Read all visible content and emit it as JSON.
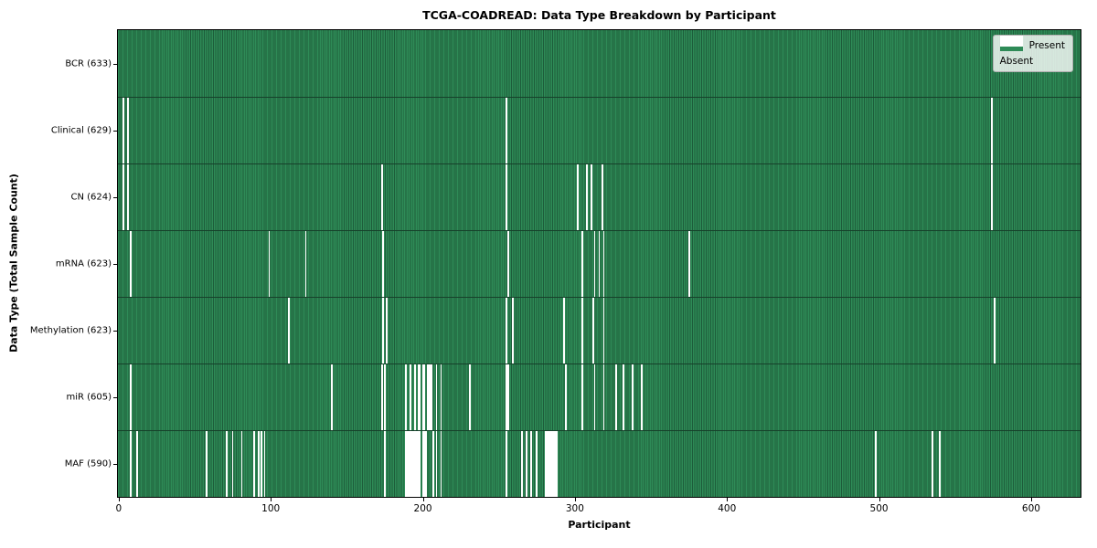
{
  "title": "TCGA-COADREAD: Data Type Breakdown by Participant",
  "xlabel": "Participant",
  "ylabel": "Data Type (Total Sample Count)",
  "colors": {
    "present": "#2e8b57",
    "present_edge": "#1d5c3a",
    "absent": "#ffffff",
    "legend_border": "#b0b0b0"
  },
  "legend": {
    "present_label": "Present",
    "absent_label": "Absent"
  },
  "chart_data": {
    "type": "heatmap",
    "title": "TCGA-COADREAD: Data Type Breakdown by Participant",
    "xlabel": "Participant",
    "ylabel": "Data Type (Total Sample Count)",
    "legend": [
      "Present",
      "Absent"
    ],
    "legend_position": "upper right",
    "n_participants": 633,
    "x_range": [
      0,
      633
    ],
    "x_ticks": [
      0,
      100,
      200,
      300,
      400,
      500,
      600
    ],
    "rows": [
      {
        "name": "BCR",
        "label": "BCR (633)",
        "present_count": 633,
        "absent_count": 0,
        "absent_participants": []
      },
      {
        "name": "Clinical",
        "label": "Clinical (629)",
        "present_count": 629,
        "absent_count": 4,
        "absent_participants": [
          3,
          6,
          255,
          574
        ]
      },
      {
        "name": "CN",
        "label": "CN (624)",
        "present_count": 624,
        "absent_count": 9,
        "absent_participants": [
          3,
          6,
          173,
          255,
          302,
          308,
          311,
          318,
          574
        ]
      },
      {
        "name": "mRNA",
        "label": "mRNA (623)",
        "present_count": 623,
        "absent_count": 10,
        "absent_participants": [
          8,
          99,
          123,
          174,
          256,
          305,
          313,
          316,
          319,
          375
        ]
      },
      {
        "name": "Methylation",
        "label": "Methylation (623)",
        "present_count": 623,
        "absent_count": 10,
        "absent_participants": [
          112,
          174,
          176,
          255,
          259,
          293,
          305,
          312,
          319,
          576
        ]
      },
      {
        "name": "miR",
        "label": "miR (605)",
        "present_count": 605,
        "absent_count": 28,
        "absent_participants": [
          8,
          140,
          173,
          175,
          189,
          192,
          195,
          197,
          198,
          200,
          201,
          203,
          204,
          205,
          206,
          209,
          212,
          231,
          255,
          256,
          294,
          305,
          313,
          319,
          327,
          332,
          338,
          344
        ]
      },
      {
        "name": "MAF",
        "label": "MAF (590)",
        "present_count": 590,
        "absent_count": 43,
        "absent_participants": [
          8,
          12,
          58,
          71,
          75,
          81,
          89,
          92,
          94,
          96,
          175,
          189,
          190,
          191,
          192,
          193,
          194,
          195,
          196,
          197,
          198,
          200,
          201,
          202,
          207,
          209,
          212,
          255,
          265,
          268,
          271,
          275,
          281,
          282,
          283,
          284,
          285,
          286,
          287,
          288,
          498,
          535,
          540
        ]
      }
    ]
  }
}
